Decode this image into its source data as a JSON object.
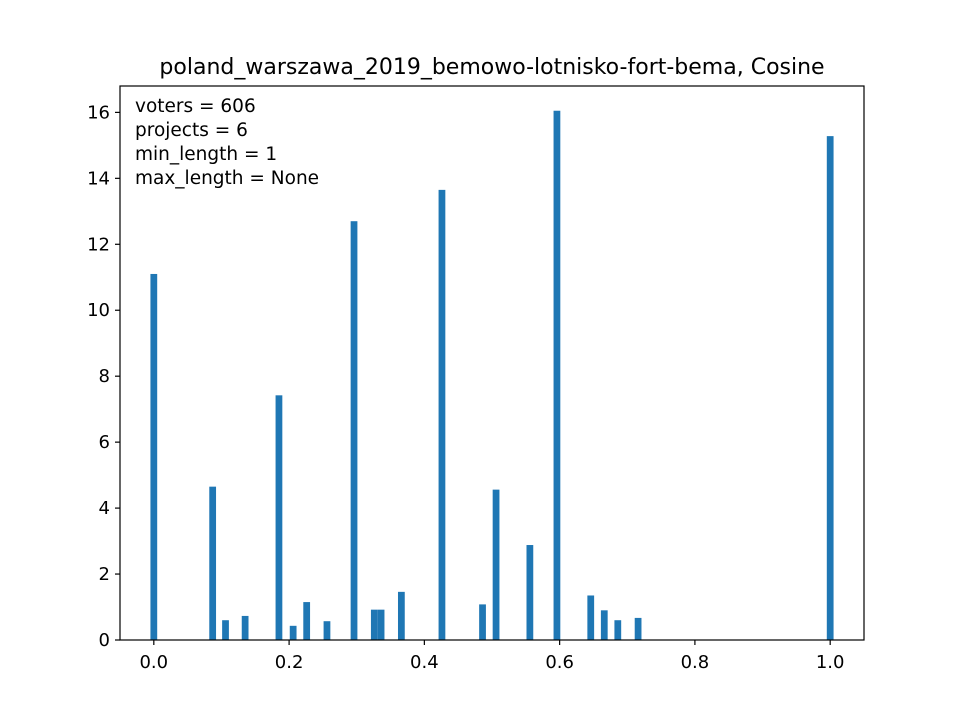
{
  "chart_data": {
    "type": "bar",
    "title": "poland_warszawa_2019_bemowo-lotnisko-fort-bema, Cosine",
    "xlabel": "",
    "ylabel": "",
    "xlim": [
      -0.05,
      1.05
    ],
    "ylim": [
      0,
      16.8
    ],
    "x_ticks": [
      0.0,
      0.2,
      0.4,
      0.6,
      0.8,
      1.0
    ],
    "x_tick_labels": [
      "0.0",
      "0.2",
      "0.4",
      "0.6",
      "0.8",
      "1.0"
    ],
    "y_ticks": [
      0,
      2,
      4,
      6,
      8,
      10,
      12,
      14,
      16
    ],
    "y_tick_labels": [
      "0",
      "2",
      "4",
      "6",
      "8",
      "10",
      "12",
      "14",
      "16"
    ],
    "bar_width": 0.01,
    "bar_color": "#1f77b4",
    "grid": false,
    "annotations": [
      "voters = 606",
      "projects = 6",
      "min_length = 1",
      "max_length = None"
    ],
    "bars": [
      {
        "x": 0.0,
        "y": 11.1
      },
      {
        "x": 0.087,
        "y": 4.65
      },
      {
        "x": 0.106,
        "y": 0.6
      },
      {
        "x": 0.135,
        "y": 0.73
      },
      {
        "x": 0.185,
        "y": 7.42
      },
      {
        "x": 0.206,
        "y": 0.43
      },
      {
        "x": 0.226,
        "y": 1.15
      },
      {
        "x": 0.256,
        "y": 0.57
      },
      {
        "x": 0.296,
        "y": 12.7
      },
      {
        "x": 0.326,
        "y": 0.92
      },
      {
        "x": 0.336,
        "y": 0.92
      },
      {
        "x": 0.366,
        "y": 1.46
      },
      {
        "x": 0.426,
        "y": 13.65
      },
      {
        "x": 0.486,
        "y": 1.08
      },
      {
        "x": 0.506,
        "y": 4.56
      },
      {
        "x": 0.556,
        "y": 2.88
      },
      {
        "x": 0.596,
        "y": 16.05
      },
      {
        "x": 0.646,
        "y": 1.35
      },
      {
        "x": 0.666,
        "y": 0.9
      },
      {
        "x": 0.686,
        "y": 0.6
      },
      {
        "x": 0.716,
        "y": 0.67
      },
      {
        "x": 1.0,
        "y": 15.28
      }
    ]
  }
}
